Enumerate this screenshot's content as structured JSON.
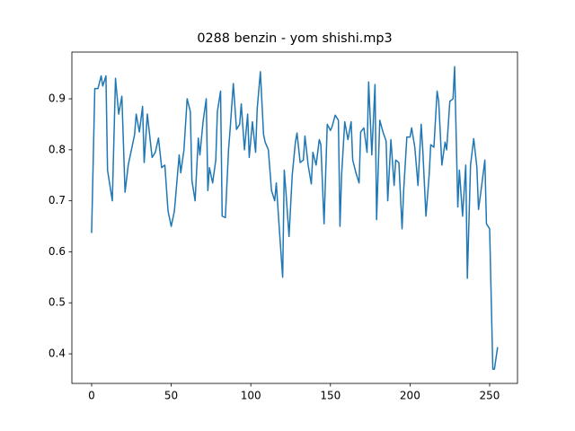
{
  "chart_data": {
    "type": "line",
    "title": "0288 benzin - yom shishi.mp3",
    "x": [
      0,
      2,
      4,
      6,
      7,
      9,
      10,
      13,
      15,
      17,
      19,
      21,
      23,
      27,
      28,
      30,
      32,
      33,
      35,
      38,
      40,
      42,
      44,
      46,
      48,
      50,
      52,
      55,
      56,
      58,
      60,
      62,
      63,
      65,
      67,
      68,
      70,
      72,
      73,
      74,
      76,
      78,
      79,
      81,
      82,
      84,
      86,
      87,
      89,
      91,
      93,
      94,
      96,
      98,
      99,
      101,
      103,
      104,
      106,
      108,
      109,
      111,
      113,
      115,
      116,
      118,
      120,
      121,
      122,
      124,
      126,
      128,
      129,
      131,
      133,
      134,
      136,
      138,
      139,
      141,
      143,
      144,
      146,
      148,
      150,
      151,
      153,
      155,
      156,
      157,
      159,
      161,
      163,
      164,
      166,
      168,
      169,
      171,
      173,
      174,
      176,
      178,
      179,
      181,
      183,
      185,
      186,
      188,
      190,
      191,
      193,
      195,
      196,
      198,
      200,
      201,
      203,
      205,
      207,
      208,
      210,
      212,
      213,
      215,
      217,
      218,
      220,
      222,
      223,
      225,
      227,
      228,
      230,
      231,
      233,
      235,
      236,
      238,
      240,
      242,
      243,
      245,
      247,
      248,
      250,
      252,
      253,
      255
    ],
    "series": [
      {
        "color": "#1f77b4",
        "values": [
          0.637,
          0.92,
          0.92,
          0.945,
          0.925,
          0.945,
          0.76,
          0.7,
          0.94,
          0.87,
          0.905,
          0.717,
          0.77,
          0.83,
          0.87,
          0.835,
          0.885,
          0.775,
          0.87,
          0.785,
          0.795,
          0.823,
          0.765,
          0.77,
          0.68,
          0.65,
          0.68,
          0.79,
          0.755,
          0.8,
          0.9,
          0.875,
          0.74,
          0.7,
          0.823,
          0.79,
          0.855,
          0.9,
          0.72,
          0.765,
          0.735,
          0.78,
          0.875,
          0.915,
          0.67,
          0.667,
          0.8,
          0.84,
          0.93,
          0.84,
          0.85,
          0.89,
          0.8,
          0.87,
          0.785,
          0.855,
          0.795,
          0.88,
          0.953,
          0.83,
          0.815,
          0.8,
          0.72,
          0.7,
          0.735,
          0.64,
          0.55,
          0.76,
          0.72,
          0.63,
          0.75,
          0.815,
          0.833,
          0.775,
          0.78,
          0.827,
          0.77,
          0.733,
          0.795,
          0.77,
          0.82,
          0.81,
          0.655,
          0.85,
          0.838,
          0.845,
          0.868,
          0.858,
          0.65,
          0.75,
          0.855,
          0.82,
          0.855,
          0.78,
          0.755,
          0.735,
          0.835,
          0.843,
          0.795,
          0.933,
          0.79,
          0.928,
          0.663,
          0.858,
          0.835,
          0.817,
          0.7,
          0.82,
          0.73,
          0.78,
          0.775,
          0.645,
          0.72,
          0.825,
          0.825,
          0.843,
          0.805,
          0.73,
          0.85,
          0.8,
          0.67,
          0.75,
          0.81,
          0.805,
          0.915,
          0.895,
          0.77,
          0.815,
          0.8,
          0.895,
          0.9,
          0.963,
          0.688,
          0.76,
          0.67,
          0.77,
          0.548,
          0.77,
          0.822,
          0.765,
          0.683,
          0.73,
          0.78,
          0.655,
          0.645,
          0.37,
          0.37,
          0.413
        ]
      }
    ],
    "xlim": [
      -12.4,
      267.5
    ],
    "ylim": [
      0.342,
      0.9916
    ],
    "xticks": [
      0,
      50,
      100,
      150,
      200,
      250
    ],
    "yticks": [
      0.4,
      0.5,
      0.6,
      0.7,
      0.8,
      0.9
    ]
  }
}
